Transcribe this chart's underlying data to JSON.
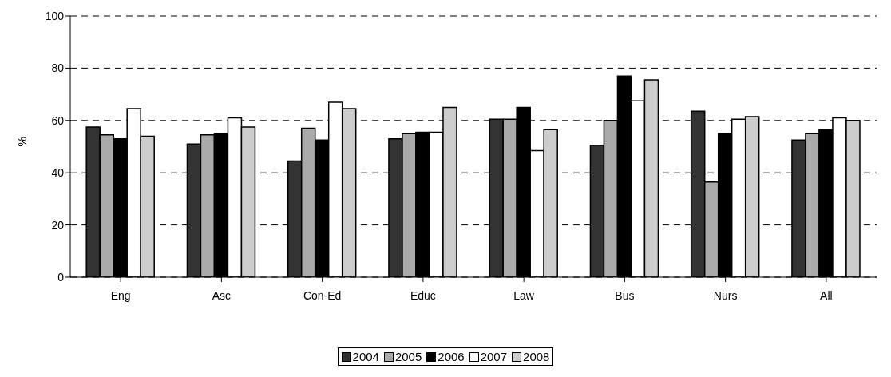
{
  "chart_data": {
    "type": "bar",
    "ylabel": "%",
    "categories": [
      "Eng",
      "Asc",
      "Con-Ed",
      "Educ",
      "Law",
      "Bus",
      "Nurs",
      "All"
    ],
    "series": [
      {
        "name": "2004",
        "color": "#333333",
        "values": [
          57.5,
          51,
          44.5,
          53,
          60.5,
          50.5,
          63.5,
          52.5
        ]
      },
      {
        "name": "2005",
        "color": "#aaaaaa",
        "values": [
          54.5,
          54.5,
          57,
          55,
          60.5,
          60,
          36.5,
          55
        ]
      },
      {
        "name": "2006",
        "color": "#000000",
        "values": [
          53,
          55,
          52.5,
          55.5,
          65,
          77,
          55,
          56.5
        ]
      },
      {
        "name": "2007",
        "color": "#ffffff",
        "values": [
          64.5,
          61,
          67,
          55.5,
          48.5,
          67.5,
          60.5,
          61
        ]
      },
      {
        "name": "2008",
        "color": "#cccccc",
        "values": [
          54,
          57.5,
          64.5,
          65,
          56.5,
          75.5,
          61.5,
          60
        ]
      }
    ],
    "ylim": [
      0,
      100
    ],
    "yticks": [
      0,
      20,
      40,
      60,
      80,
      100
    ],
    "grid": "y",
    "legend": "bottom"
  }
}
